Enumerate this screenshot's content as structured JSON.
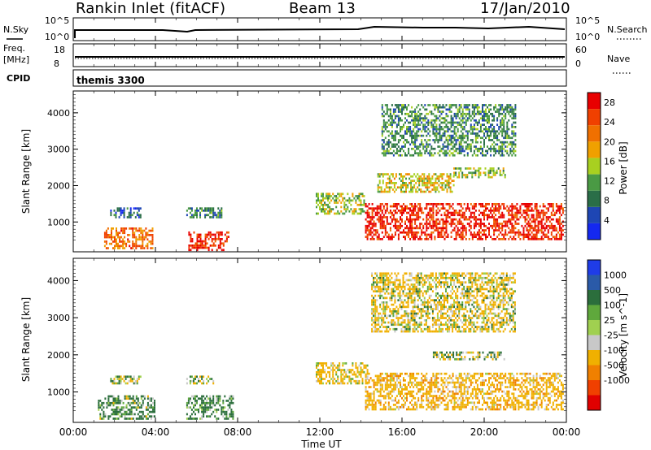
{
  "header": {
    "station": "Rankin Inlet (fitACF)",
    "beam": "Beam 13",
    "date": "17/Jan/2010"
  },
  "strips": {
    "nsky": {
      "label": "N.Sky",
      "left_ticks": [
        "10^5",
        "10^0"
      ],
      "right_ticks": [
        "10^5",
        "10^0"
      ],
      "right_label": "N.Search"
    },
    "freq": {
      "label": "Freq.",
      "unit": "[MHz]",
      "left_ticks": [
        "18",
        "8"
      ],
      "right_ticks": [
        "60",
        "0"
      ],
      "right_label": "Nave"
    },
    "cpid": {
      "label": "CPID",
      "program": "themis 3300"
    }
  },
  "colors": {
    "power_scale": [
      "#1428f0",
      "#1e46b4",
      "#2a6e48",
      "#4a9a44",
      "#a8d020",
      "#f0a000",
      "#f07000",
      "#f04000",
      "#e80000"
    ],
    "velocity_scale": [
      "#1f3ce8",
      "#2a5aa8",
      "#2b6e3c",
      "#5fa83c",
      "#a0d050",
      "#c8c8c8",
      "#f0b000",
      "#f08000",
      "#f04000",
      "#e00000"
    ]
  },
  "chart_data": [
    {
      "type": "heatmap",
      "panel": "power",
      "title": "",
      "ylabel": "Slant Range [km]",
      "xlabel": "",
      "ylim": [
        180,
        4600
      ],
      "yticks": [
        "1000",
        "2000",
        "3000",
        "4000"
      ],
      "xlim_hours": [
        0,
        24
      ],
      "colorbar": {
        "label": "Power [dB]",
        "ticks": [
          "4",
          "8",
          "12",
          "16",
          "20",
          "24",
          "28"
        ],
        "range": [
          0,
          30
        ]
      },
      "regions": [
        {
          "t0": 1.5,
          "t1": 3.9,
          "r0": 250,
          "r1": 800,
          "value": 22
        },
        {
          "t0": 5.6,
          "t1": 7.6,
          "r0": 200,
          "r1": 700,
          "value": 26
        },
        {
          "t0": 1.8,
          "t1": 3.3,
          "r0": 1100,
          "r1": 1400,
          "value": 6
        },
        {
          "t0": 5.5,
          "t1": 7.2,
          "r0": 1100,
          "r1": 1400,
          "value": 9
        },
        {
          "t0": 11.8,
          "t1": 14.2,
          "r0": 1200,
          "r1": 1800,
          "value": 14
        },
        {
          "t0": 14.2,
          "t1": 23.8,
          "r0": 500,
          "r1": 1500,
          "value": 27
        },
        {
          "t0": 14.8,
          "t1": 18.5,
          "r0": 1800,
          "r1": 2300,
          "value": 16
        },
        {
          "t0": 18.5,
          "t1": 21.0,
          "r0": 2200,
          "r1": 2500,
          "value": 14
        },
        {
          "t0": 15.0,
          "t1": 21.5,
          "r0": 2800,
          "r1": 4200,
          "value": 10
        }
      ]
    },
    {
      "type": "heatmap",
      "panel": "velocity",
      "title": "",
      "ylabel": "Slant Range [km]",
      "xlabel": "Time UT",
      "ylim": [
        180,
        4600
      ],
      "yticks": [
        "1000",
        "2000",
        "3000",
        "4000"
      ],
      "xlim_hours": [
        0,
        24
      ],
      "xticks": [
        "00:00",
        "04:00",
        "08:00",
        "12:00",
        "16:00",
        "20:00",
        "00:00"
      ],
      "colorbar": {
        "label": "Velocity [m s^-1]",
        "ticks": [
          "1000",
          "500",
          "100",
          "25",
          "-25",
          "-100",
          "-500",
          "-1000"
        ],
        "range": [
          -1000,
          1000
        ]
      },
      "regions": [
        {
          "t0": 1.2,
          "t1": 4.0,
          "r0": 250,
          "r1": 900,
          "value": 150
        },
        {
          "t0": 5.5,
          "t1": 7.8,
          "r0": 250,
          "r1": 900,
          "value": 200
        },
        {
          "t0": 1.8,
          "t1": 3.3,
          "r0": 1200,
          "r1": 1400,
          "value": 0
        },
        {
          "t0": 5.5,
          "t1": 6.8,
          "r0": 1200,
          "r1": 1400,
          "value": 0
        },
        {
          "t0": 11.8,
          "t1": 14.3,
          "r0": 1200,
          "r1": 1800,
          "value": -200
        },
        {
          "t0": 14.2,
          "t1": 23.8,
          "r0": 500,
          "r1": 1500,
          "value": -300
        },
        {
          "t0": 17.5,
          "t1": 21.0,
          "r0": 1850,
          "r1": 2050,
          "value": 0
        },
        {
          "t0": 14.5,
          "t1": 21.5,
          "r0": 2600,
          "r1": 4200,
          "value": -150
        }
      ]
    }
  ]
}
